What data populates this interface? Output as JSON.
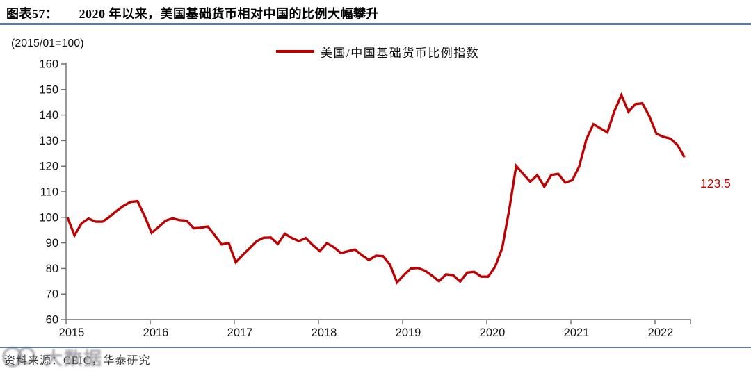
{
  "figure": {
    "label": "图表57：",
    "title": "2020 年以来，美国基础货币相对中国的比例大幅攀升"
  },
  "axis_unit": "(2015/01=100)",
  "legend": {
    "label": "美国/中国基础货币比例指数"
  },
  "end_label": "123.5",
  "source": {
    "text": "资料来源：CEIC，华泰研究"
  },
  "watermark": {
    "text": "大数据"
  },
  "colors": {
    "line": "#c00000",
    "accent_rule": "#5b7ba5",
    "axis": "#6e6e6e",
    "tick_label": "#111111",
    "end_label": "#c00000"
  },
  "chart_data": {
    "type": "line",
    "title": "美国/中国基础货币比例指数",
    "subtitle_unit": "(2015/01=100)",
    "x_monthly_start": "2015-01",
    "x_monthly_end": "2022-05",
    "x_tick_labels": [
      "2015",
      "2016",
      "2017",
      "2018",
      "2019",
      "2020",
      "2021",
      "2022"
    ],
    "ylim": [
      60,
      160
    ],
    "y_ticks": [
      60,
      70,
      80,
      90,
      100,
      110,
      120,
      130,
      140,
      150,
      160
    ],
    "grid": false,
    "legend_position": "top-center",
    "last_value_label": "123.5",
    "values": [
      100.0,
      92.9,
      97.6,
      99.5,
      98.3,
      98.3,
      100.2,
      102.5,
      104.5,
      106.0,
      106.3,
      100.5,
      93.9,
      96.2,
      98.7,
      99.6,
      98.9,
      98.7,
      95.7,
      95.9,
      96.4,
      93.0,
      89.4,
      90.0,
      82.4,
      85.3,
      88.0,
      90.7,
      92.0,
      92.1,
      89.6,
      93.6,
      91.9,
      90.7,
      91.9,
      89.1,
      86.8,
      89.9,
      88.3,
      86.0,
      86.7,
      87.4,
      85.2,
      83.3,
      85.0,
      84.8,
      81.5,
      74.5,
      77.5,
      80.0,
      80.2,
      79.1,
      77.2,
      75.0,
      77.7,
      77.4,
      74.9,
      78.4,
      78.7,
      76.8,
      76.8,
      80.7,
      88.0,
      103.0,
      120.1,
      117.0,
      113.9,
      116.5,
      112.0,
      116.6,
      117.0,
      113.6,
      114.5,
      120.0,
      130.5,
      136.4,
      134.8,
      133.2,
      141.5,
      147.8,
      141.3,
      144.3,
      144.6,
      139.5,
      132.7,
      131.5,
      130.8,
      128.3,
      123.5
    ]
  }
}
